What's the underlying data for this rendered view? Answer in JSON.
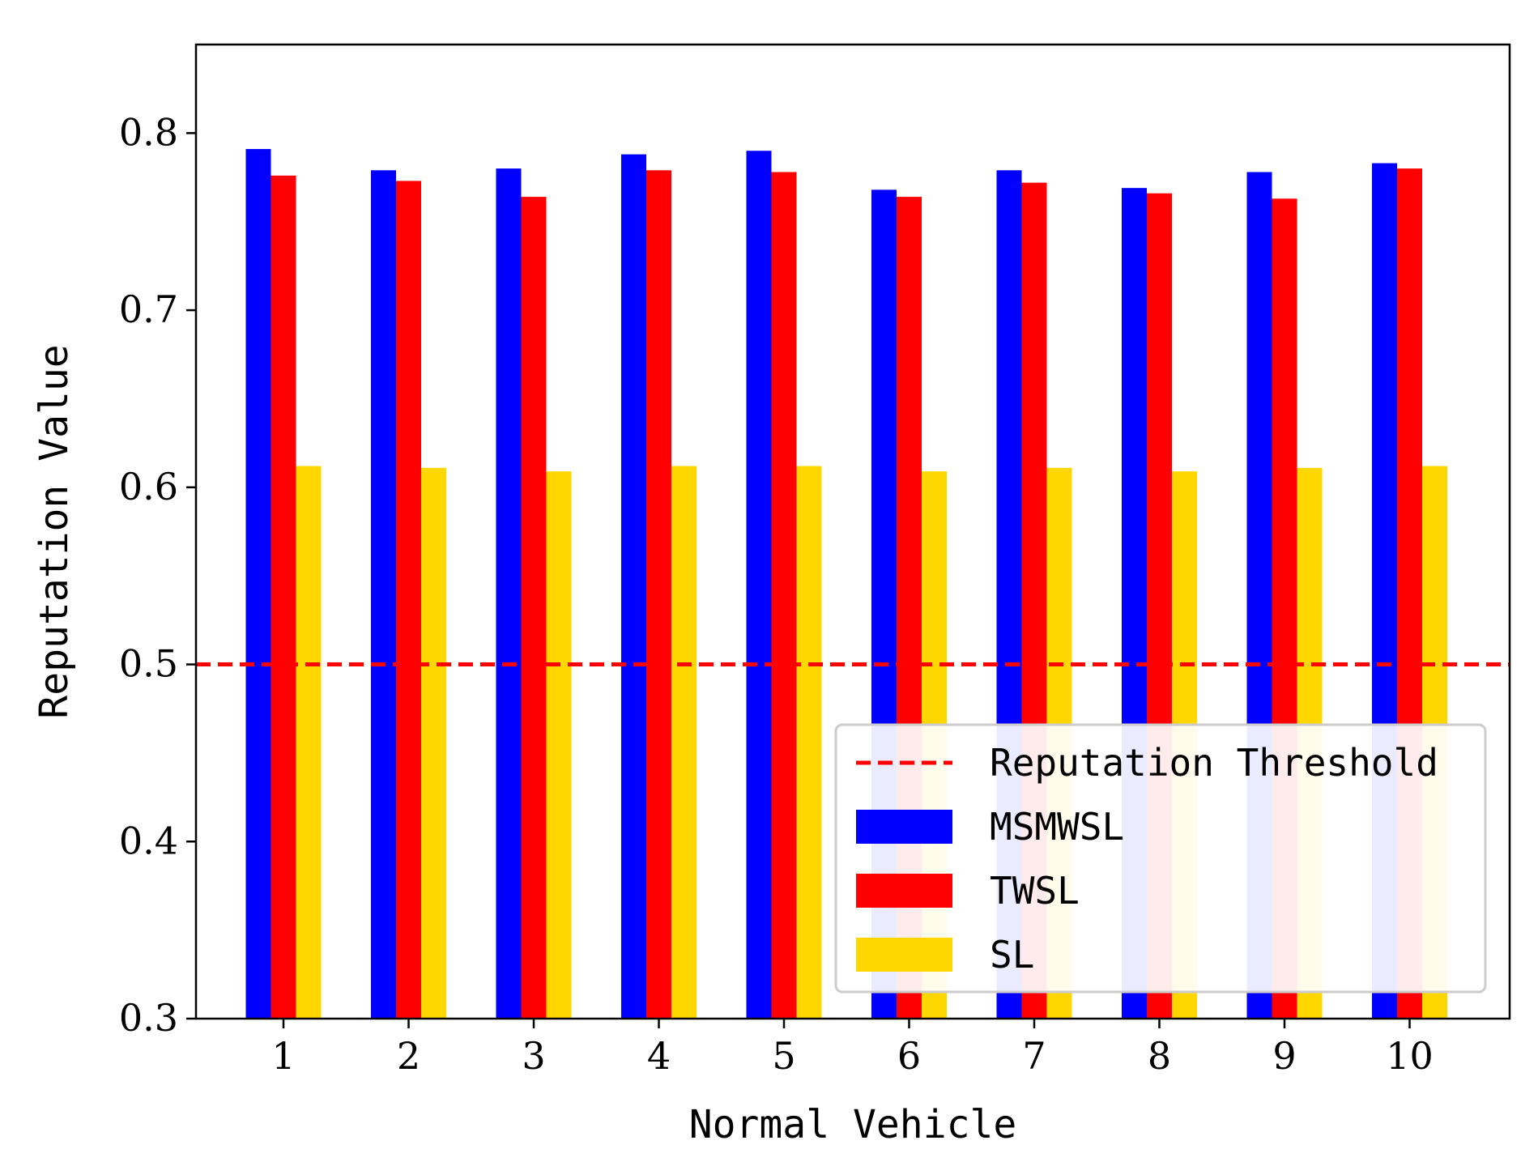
{
  "chart_data": {
    "type": "bar",
    "title": "",
    "xlabel": "Normal Vehicle",
    "ylabel": "Reputation Value",
    "categories": [
      "1",
      "2",
      "3",
      "4",
      "5",
      "6",
      "7",
      "8",
      "9",
      "10"
    ],
    "ylim": [
      0.3,
      0.85
    ],
    "yticks": [
      0.3,
      0.4,
      0.5,
      0.6,
      0.7,
      0.8
    ],
    "ytick_labels": [
      "0.3",
      "0.4",
      "0.5",
      "0.6",
      "0.7",
      "0.8"
    ],
    "series": [
      {
        "name": "MSMWSL",
        "color": "#0000ff",
        "values": [
          0.791,
          0.779,
          0.78,
          0.788,
          0.79,
          0.768,
          0.779,
          0.769,
          0.778,
          0.783
        ]
      },
      {
        "name": "TWSL",
        "color": "#ff0000",
        "values": [
          0.776,
          0.773,
          0.764,
          0.779,
          0.778,
          0.764,
          0.772,
          0.766,
          0.763,
          0.78
        ]
      },
      {
        "name": "SL",
        "color": "#ffd700",
        "values": [
          0.612,
          0.611,
          0.609,
          0.612,
          0.612,
          0.609,
          0.611,
          0.609,
          0.611,
          0.612
        ]
      }
    ],
    "threshold": {
      "name": "Reputation Threshold",
      "value": 0.5,
      "color": "#ff0000",
      "style": "dashed"
    },
    "legend_position": "lower-right",
    "grid": false
  }
}
